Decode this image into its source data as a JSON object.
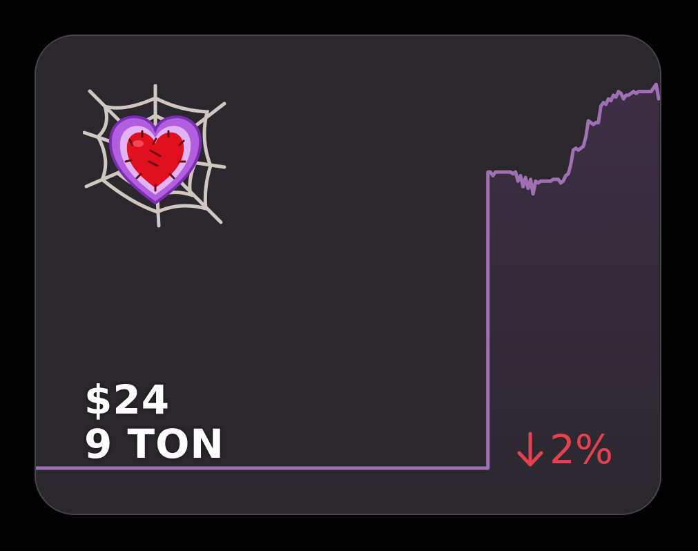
{
  "card": {
    "price_usd": "$24",
    "price_ton": "9 TON",
    "change_direction": "down",
    "change_percent": "2%",
    "icon": "spider-web-heart-icon",
    "arrow_icon": "arrow-down-icon"
  },
  "colors": {
    "background": "#000000",
    "card": "#2b282d",
    "card_border": "#46434a",
    "line": "#a070b4",
    "area_top": "#3d2f45",
    "change_negative": "#e8404f",
    "text": "#ffffff"
  },
  "chart_data": {
    "type": "area",
    "grid": false,
    "legend": "none",
    "values": [
      7,
      7,
      7,
      7,
      7,
      7,
      7,
      7,
      7,
      7,
      7,
      7,
      7,
      7,
      7,
      7,
      7,
      7,
      7,
      7,
      7,
      7,
      7,
      7,
      7,
      7,
      7,
      7,
      7,
      7,
      7,
      7,
      7,
      7,
      7,
      7,
      7,
      7,
      7,
      7,
      7,
      7,
      7,
      7,
      7,
      7,
      7,
      7,
      7,
      7,
      7,
      7,
      7,
      7,
      7,
      7,
      7,
      7,
      7,
      7,
      7,
      7,
      7,
      7,
      7,
      7,
      7,
      7,
      7,
      7,
      7,
      7,
      7,
      7,
      7,
      7,
      7,
      7,
      7,
      7,
      7,
      7,
      7,
      7,
      7,
      7,
      7,
      7,
      7,
      7,
      7,
      7,
      7,
      7,
      7,
      7,
      7,
      7,
      7,
      7,
      7,
      7,
      7,
      7,
      7,
      7,
      7,
      7,
      7,
      7,
      7,
      7,
      7,
      7,
      7,
      7,
      7,
      7,
      7,
      7,
      7,
      7,
      7,
      7,
      7,
      7,
      7,
      7,
      7,
      7,
      7,
      7,
      7,
      7,
      7,
      7,
      7,
      7,
      7,
      7,
      7,
      7,
      7,
      7,
      7,
      7,
      7,
      7,
      7,
      7,
      7,
      7,
      7,
      7,
      7,
      7,
      7,
      7,
      7,
      7,
      7,
      7,
      7,
      7,
      7,
      7,
      7,
      7,
      7,
      7,
      7,
      7,
      7,
      7,
      7,
      7,
      7,
      7,
      7,
      7,
      23.2,
      23.2,
      23.0,
      23.2,
      23.2,
      23.2,
      23.2,
      23.2,
      23.2,
      23.2,
      23.1,
      23.2,
      22.7,
      23.0,
      22.4,
      22.9,
      22.3,
      22.8,
      22.0,
      22.7,
      22.6,
      22.7,
      22.7,
      22.7,
      22.7,
      22.7,
      22.8,
      22.8,
      22.8,
      22.6,
      22.7,
      23.0,
      23.1,
      23.6,
      24.4,
      24.5,
      24.4,
      24.5,
      24.6,
      25.1,
      26.0,
      25.9,
      25.8,
      25.9,
      25.9,
      26.8,
      27.0,
      26.9,
      27.2,
      27.1,
      27.4,
      27.3,
      27.6,
      27.5,
      27.2,
      27.4,
      27.4,
      27.5,
      27.6,
      27.5,
      27.6,
      27.6,
      27.6,
      27.6,
      27.6,
      27.6,
      27.8,
      28.0,
      27.2
    ]
  }
}
